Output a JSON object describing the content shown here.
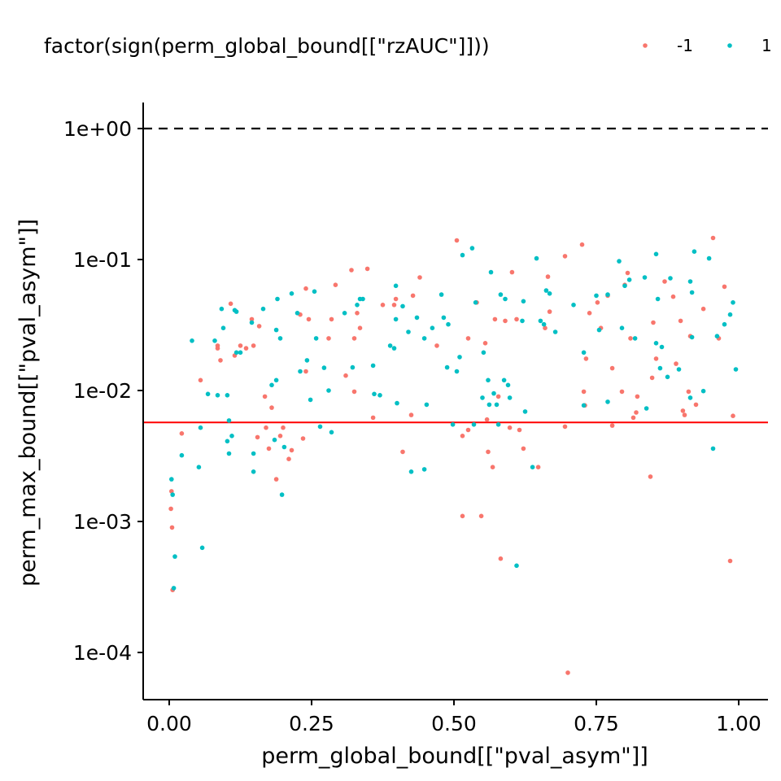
{
  "chart_data": {
    "type": "scatter",
    "xlabel": "perm_global_bound[[\"pval_asym\"]]",
    "ylabel": "perm_max_bound[[\"pval_asym\"]]",
    "x_ticks": [
      "0.00",
      "0.25",
      "0.50",
      "0.75",
      "1.00"
    ],
    "x_tick_values": [
      0,
      0.25,
      0.5,
      0.75,
      1
    ],
    "y_ticks": [
      "1e-04",
      "1e-03",
      "1e-02",
      "1e-01",
      "1e+00"
    ],
    "y_tick_values": [
      0.0001,
      0.001,
      0.01,
      0.1,
      1
    ],
    "y_scale": "log10",
    "xlim": [
      -0.046,
      1.046
    ],
    "ylim": [
      5.45e-05,
      1.7
    ],
    "grid": false,
    "legend": {
      "title": "factor(sign(perm_global_bound[[\"rzAUC\"]]))",
      "position": "top",
      "entries": [
        {
          "label": "-1",
          "color": "#F8766D"
        },
        {
          "label": "1",
          "color": "#00BFC4"
        }
      ]
    },
    "reference_lines": [
      {
        "type": "hline",
        "y": 1,
        "style": "dashed",
        "color": "#000000"
      },
      {
        "type": "hline",
        "y": 0.0057,
        "style": "solid",
        "color": "#FF0000"
      }
    ],
    "series": [
      {
        "name": "-1",
        "color": "#F8766D",
        "points": [
          [
            0.003,
            0.00125
          ],
          [
            0.004,
            0.0017
          ],
          [
            0.005,
            0.0009
          ],
          [
            0.006,
            0.0003
          ],
          [
            0.022,
            0.0047
          ],
          [
            0.055,
            0.012
          ],
          [
            0.085,
            0.022
          ],
          [
            0.085,
            0.021
          ],
          [
            0.09,
            0.017
          ],
          [
            0.108,
            0.046
          ],
          [
            0.115,
            0.0185
          ],
          [
            0.125,
            0.022
          ],
          [
            0.135,
            0.021
          ],
          [
            0.145,
            0.035
          ],
          [
            0.148,
            0.022
          ],
          [
            0.155,
            0.0044
          ],
          [
            0.158,
            0.031
          ],
          [
            0.168,
            0.009
          ],
          [
            0.17,
            0.0052
          ],
          [
            0.18,
            0.0074
          ],
          [
            0.175,
            0.0036
          ],
          [
            0.188,
            0.0021
          ],
          [
            0.195,
            0.0045
          ],
          [
            0.2,
            0.0052
          ],
          [
            0.21,
            0.003
          ],
          [
            0.215,
            0.0035
          ],
          [
            0.23,
            0.038
          ],
          [
            0.235,
            0.0043
          ],
          [
            0.24,
            0.06
          ],
          [
            0.245,
            0.035
          ],
          [
            0.24,
            0.014
          ],
          [
            0.28,
            0.025
          ],
          [
            0.285,
            0.035
          ],
          [
            0.292,
            0.064
          ],
          [
            0.31,
            0.013
          ],
          [
            0.32,
            0.083
          ],
          [
            0.325,
            0.0098
          ],
          [
            0.325,
            0.025
          ],
          [
            0.33,
            0.039
          ],
          [
            0.335,
            0.03
          ],
          [
            0.348,
            0.085
          ],
          [
            0.358,
            0.0062
          ],
          [
            0.375,
            0.045
          ],
          [
            0.395,
            0.045
          ],
          [
            0.398,
            0.05
          ],
          [
            0.41,
            0.0034
          ],
          [
            0.425,
            0.0065
          ],
          [
            0.428,
            0.053
          ],
          [
            0.44,
            0.073
          ],
          [
            0.47,
            0.022
          ],
          [
            0.505,
            0.14
          ],
          [
            0.515,
            0.0045
          ],
          [
            0.515,
            0.0011
          ],
          [
            0.525,
            0.025
          ],
          [
            0.525,
            0.005
          ],
          [
            0.54,
            0.047
          ],
          [
            0.548,
            0.0011
          ],
          [
            0.555,
            0.023
          ],
          [
            0.558,
            0.006
          ],
          [
            0.56,
            0.0034
          ],
          [
            0.568,
            0.0026
          ],
          [
            0.572,
            0.035
          ],
          [
            0.578,
            0.009
          ],
          [
            0.582,
            0.00052
          ],
          [
            0.59,
            0.034
          ],
          [
            0.598,
            0.0052
          ],
          [
            0.602,
            0.08
          ],
          [
            0.61,
            0.035
          ],
          [
            0.615,
            0.005
          ],
          [
            0.622,
            0.0036
          ],
          [
            0.648,
            0.0026
          ],
          [
            0.66,
            0.03
          ],
          [
            0.665,
            0.074
          ],
          [
            0.668,
            0.04
          ],
          [
            0.695,
            0.0053
          ],
          [
            0.695,
            0.106
          ],
          [
            0.7,
            7e-05
          ],
          [
            0.725,
            0.13
          ],
          [
            0.728,
            0.0098
          ],
          [
            0.73,
            0.0077
          ],
          [
            0.732,
            0.0175
          ],
          [
            0.738,
            0.039
          ],
          [
            0.752,
            0.047
          ],
          [
            0.758,
            0.03
          ],
          [
            0.77,
            0.053
          ],
          [
            0.778,
            0.0054
          ],
          [
            0.778,
            0.0148
          ],
          [
            0.795,
            0.0098
          ],
          [
            0.8,
            0.064
          ],
          [
            0.805,
            0.079
          ],
          [
            0.81,
            0.025
          ],
          [
            0.815,
            0.0062
          ],
          [
            0.82,
            0.0068
          ],
          [
            0.822,
            0.009
          ],
          [
            0.845,
            0.0022
          ],
          [
            0.848,
            0.0125
          ],
          [
            0.85,
            0.033
          ],
          [
            0.855,
            0.0175
          ],
          [
            0.87,
            0.068
          ],
          [
            0.885,
            0.052
          ],
          [
            0.89,
            0.016
          ],
          [
            0.898,
            0.034
          ],
          [
            0.902,
            0.007
          ],
          [
            0.905,
            0.0065
          ],
          [
            0.912,
            0.0098
          ],
          [
            0.915,
            0.026
          ],
          [
            0.925,
            0.0078
          ],
          [
            0.938,
            0.042
          ],
          [
            0.955,
            0.146
          ],
          [
            0.965,
            0.025
          ],
          [
            0.975,
            0.062
          ],
          [
            0.985,
            0.0005
          ],
          [
            0.99,
            0.0064
          ]
        ]
      },
      {
        "name": "1",
        "color": "#00BFC4",
        "points": [
          [
            0.004,
            0.0021
          ],
          [
            0.006,
            0.0016
          ],
          [
            0.008,
            0.00031
          ],
          [
            0.01,
            0.00054
          ],
          [
            0.022,
            0.0032
          ],
          [
            0.04,
            0.024
          ],
          [
            0.052,
            0.0026
          ],
          [
            0.055,
            0.0052
          ],
          [
            0.058,
            0.00063
          ],
          [
            0.068,
            0.0094
          ],
          [
            0.08,
            0.024
          ],
          [
            0.085,
            0.0092
          ],
          [
            0.092,
            0.042
          ],
          [
            0.095,
            0.03
          ],
          [
            0.102,
            0.0092
          ],
          [
            0.102,
            0.0041
          ],
          [
            0.105,
            0.0059
          ],
          [
            0.105,
            0.0033
          ],
          [
            0.11,
            0.0045
          ],
          [
            0.115,
            0.041
          ],
          [
            0.118,
            0.04
          ],
          [
            0.118,
            0.0195
          ],
          [
            0.125,
            0.0195
          ],
          [
            0.145,
            0.033
          ],
          [
            0.148,
            0.0024
          ],
          [
            0.148,
            0.0033
          ],
          [
            0.165,
            0.042
          ],
          [
            0.18,
            0.011
          ],
          [
            0.185,
            0.0042
          ],
          [
            0.188,
            0.029
          ],
          [
            0.188,
            0.012
          ],
          [
            0.19,
            0.05
          ],
          [
            0.195,
            0.025
          ],
          [
            0.198,
            0.0016
          ],
          [
            0.202,
            0.0037
          ],
          [
            0.215,
            0.055
          ],
          [
            0.225,
            0.039
          ],
          [
            0.23,
            0.014
          ],
          [
            0.242,
            0.017
          ],
          [
            0.248,
            0.0085
          ],
          [
            0.255,
            0.057
          ],
          [
            0.258,
            0.025
          ],
          [
            0.265,
            0.0053
          ],
          [
            0.272,
            0.0149
          ],
          [
            0.28,
            0.01
          ],
          [
            0.285,
            0.0048
          ],
          [
            0.308,
            0.039
          ],
          [
            0.322,
            0.015
          ],
          [
            0.33,
            0.045
          ],
          [
            0.335,
            0.05
          ],
          [
            0.34,
            0.05
          ],
          [
            0.358,
            0.0155
          ],
          [
            0.36,
            0.0094
          ],
          [
            0.37,
            0.0092
          ],
          [
            0.388,
            0.022
          ],
          [
            0.395,
            0.021
          ],
          [
            0.398,
            0.035
          ],
          [
            0.398,
            0.063
          ],
          [
            0.4,
            0.008
          ],
          [
            0.41,
            0.044
          ],
          [
            0.42,
            0.028
          ],
          [
            0.425,
            0.0024
          ],
          [
            0.435,
            0.036
          ],
          [
            0.448,
            0.0025
          ],
          [
            0.448,
            0.025
          ],
          [
            0.452,
            0.0078
          ],
          [
            0.462,
            0.03
          ],
          [
            0.478,
            0.054
          ],
          [
            0.482,
            0.036
          ],
          [
            0.488,
            0.015
          ],
          [
            0.49,
            0.032
          ],
          [
            0.498,
            0.0055
          ],
          [
            0.505,
            0.014
          ],
          [
            0.51,
            0.018
          ],
          [
            0.515,
            0.108
          ],
          [
            0.532,
            0.122
          ],
          [
            0.535,
            0.0055
          ],
          [
            0.538,
            0.047
          ],
          [
            0.55,
            0.0088
          ],
          [
            0.552,
            0.0195
          ],
          [
            0.56,
            0.012
          ],
          [
            0.562,
            0.0078
          ],
          [
            0.565,
            0.08
          ],
          [
            0.57,
            0.0095
          ],
          [
            0.575,
            0.0078
          ],
          [
            0.578,
            0.0055
          ],
          [
            0.582,
            0.054
          ],
          [
            0.588,
            0.012
          ],
          [
            0.59,
            0.05
          ],
          [
            0.595,
            0.011
          ],
          [
            0.598,
            0.0088
          ],
          [
            0.61,
            0.00046
          ],
          [
            0.62,
            0.034
          ],
          [
            0.622,
            0.048
          ],
          [
            0.625,
            0.0069
          ],
          [
            0.638,
            0.0026
          ],
          [
            0.645,
            0.102
          ],
          [
            0.652,
            0.034
          ],
          [
            0.658,
            0.032
          ],
          [
            0.662,
            0.058
          ],
          [
            0.668,
            0.055
          ],
          [
            0.678,
            0.028
          ],
          [
            0.71,
            0.045
          ],
          [
            0.728,
            0.0195
          ],
          [
            0.728,
            0.0077
          ],
          [
            0.75,
            0.053
          ],
          [
            0.755,
            0.029
          ],
          [
            0.77,
            0.0082
          ],
          [
            0.77,
            0.054
          ],
          [
            0.79,
            0.097
          ],
          [
            0.795,
            0.03
          ],
          [
            0.8,
            0.063
          ],
          [
            0.808,
            0.07
          ],
          [
            0.818,
            0.025
          ],
          [
            0.835,
            0.073
          ],
          [
            0.838,
            0.0073
          ],
          [
            0.855,
            0.11
          ],
          [
            0.855,
            0.023
          ],
          [
            0.858,
            0.05
          ],
          [
            0.862,
            0.0148
          ],
          [
            0.865,
            0.0215
          ],
          [
            0.875,
            0.0127
          ],
          [
            0.88,
            0.072
          ],
          [
            0.895,
            0.0145
          ],
          [
            0.915,
            0.068
          ],
          [
            0.915,
            0.0088
          ],
          [
            0.918,
            0.056
          ],
          [
            0.918,
            0.0255
          ],
          [
            0.922,
            0.115
          ],
          [
            0.938,
            0.0099
          ],
          [
            0.948,
            0.102
          ],
          [
            0.955,
            0.0036
          ],
          [
            0.962,
            0.026
          ],
          [
            0.975,
            0.032
          ],
          [
            0.985,
            0.038
          ],
          [
            0.99,
            0.047
          ],
          [
            0.995,
            0.0145
          ]
        ]
      }
    ]
  }
}
